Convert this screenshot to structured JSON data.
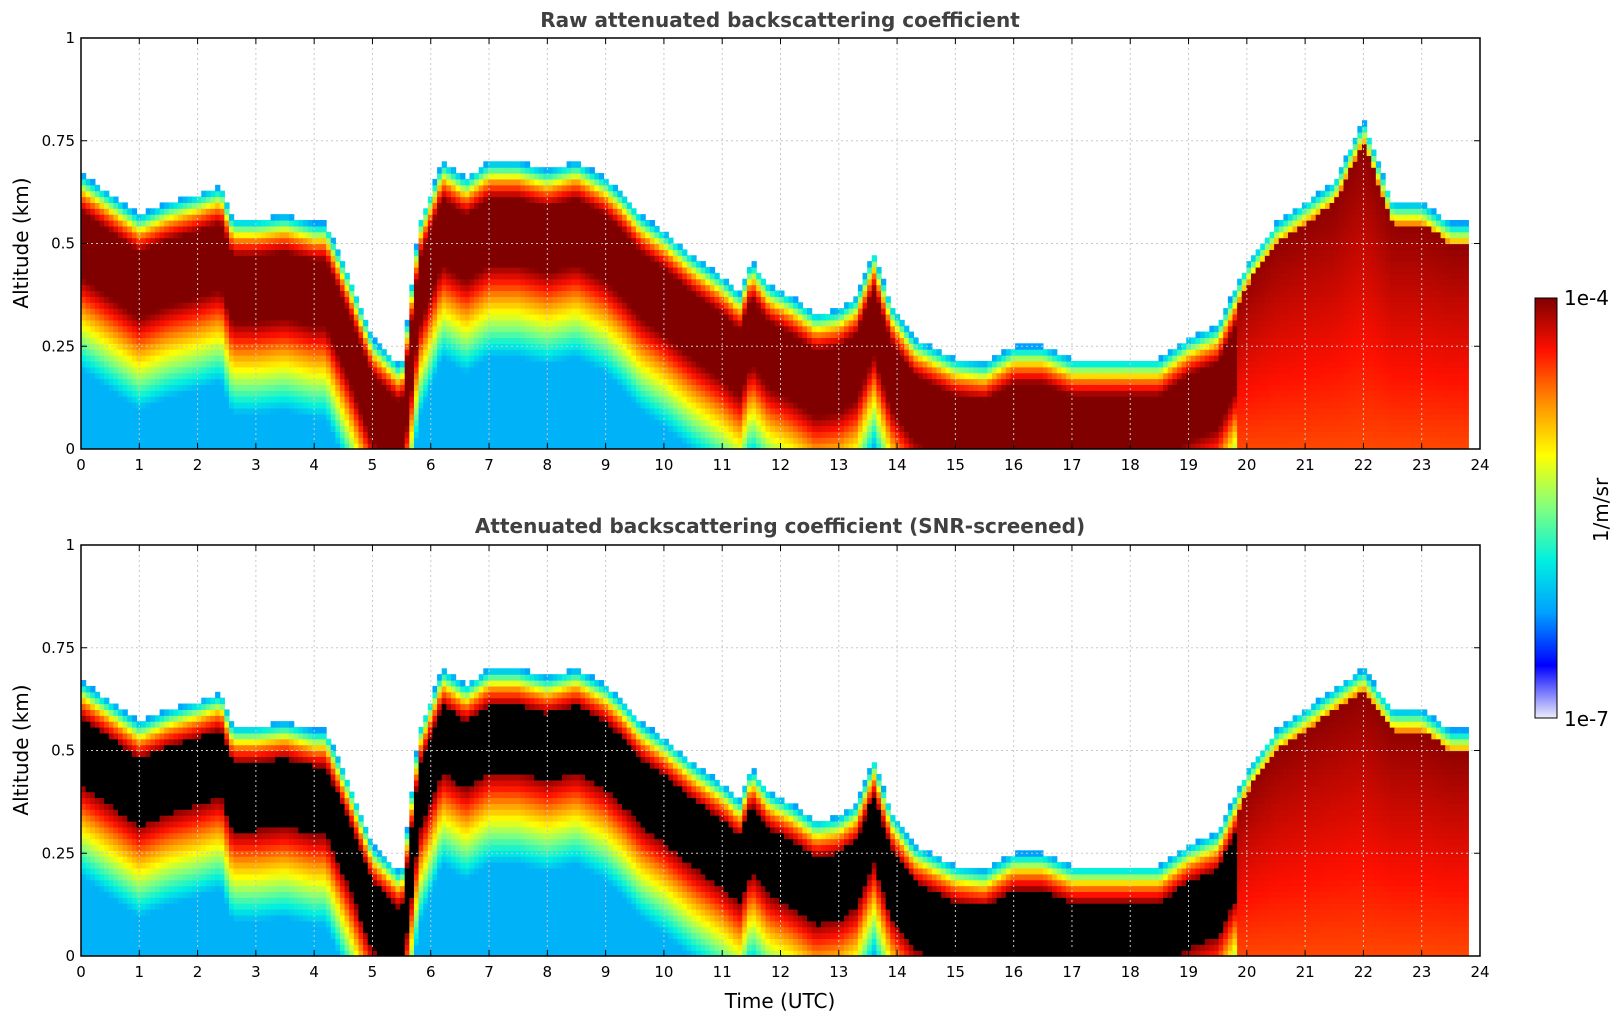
{
  "colors": {
    "colormap": [
      "#ecedfa",
      "#0000ff",
      "#00a0ff",
      "#00f0e0",
      "#80ff80",
      "#ffff00",
      "#ff9000",
      "#ff1000",
      "#800000"
    ],
    "screened": "#000000",
    "grid": "#c8c8c8"
  },
  "colorbar": {
    "min_label": "1e-7",
    "max_label": "1e-4",
    "label": "1/m/sr"
  },
  "chart_data": [
    {
      "type": "heatmap",
      "title": "Raw attenuated backscattering coefficient",
      "xlabel": "",
      "ylabel": "Altitude (km)",
      "xlim": [
        0,
        24
      ],
      "ylim": [
        0,
        1
      ],
      "xticks": [
        "0",
        "1",
        "2",
        "3",
        "4",
        "5",
        "6",
        "7",
        "8",
        "9",
        "10",
        "11",
        "12",
        "13",
        "14",
        "15",
        "16",
        "17",
        "18",
        "19",
        "20",
        "21",
        "22",
        "23",
        "24"
      ],
      "yticks": [
        "0",
        "0.25",
        "0.5",
        "0.75",
        "1"
      ],
      "grid": true,
      "screened": false,
      "layer_top_km": {
        "time_utc": [
          0,
          0.5,
          1,
          1.5,
          2,
          2.4,
          2.6,
          3,
          3.5,
          4,
          4.2,
          4.6,
          5,
          5.5,
          5.8,
          6.2,
          6.6,
          7,
          7.5,
          8,
          8.5,
          9,
          9.3,
          9.6,
          10,
          10.5,
          11,
          11.3,
          11.5,
          11.8,
          12.2,
          12.6,
          13,
          13.3,
          13.6,
          13.9,
          14.3,
          15,
          15.5,
          16,
          16.5,
          17,
          17.5,
          18,
          18.5,
          19,
          19.5,
          20,
          20.5,
          21,
          21.5,
          22,
          22.5,
          23,
          23.5,
          23.8
        ],
        "altitude_km": [
          0.67,
          0.62,
          0.57,
          0.6,
          0.62,
          0.64,
          0.56,
          0.56,
          0.57,
          0.55,
          0.55,
          0.42,
          0.27,
          0.2,
          0.55,
          0.7,
          0.66,
          0.7,
          0.7,
          0.68,
          0.7,
          0.66,
          0.62,
          0.57,
          0.53,
          0.47,
          0.42,
          0.38,
          0.46,
          0.4,
          0.37,
          0.33,
          0.34,
          0.37,
          0.48,
          0.35,
          0.27,
          0.22,
          0.21,
          0.25,
          0.25,
          0.22,
          0.22,
          0.22,
          0.22,
          0.27,
          0.3,
          0.45,
          0.55,
          0.6,
          0.65,
          0.8,
          0.6,
          0.6,
          0.55,
          0.55
        ]
      }
    },
    {
      "type": "heatmap",
      "title": "Attenuated backscattering coefficient (SNR-screened)",
      "xlabel": "Time (UTC)",
      "ylabel": "Altitude (km)",
      "xlim": [
        0,
        24
      ],
      "ylim": [
        0,
        1
      ],
      "xticks": [
        "0",
        "1",
        "2",
        "3",
        "4",
        "5",
        "6",
        "7",
        "8",
        "9",
        "10",
        "11",
        "12",
        "13",
        "14",
        "15",
        "16",
        "17",
        "18",
        "19",
        "20",
        "21",
        "22",
        "23",
        "24"
      ],
      "yticks": [
        "0",
        "0.25",
        "0.5",
        "0.75",
        "1"
      ],
      "grid": true,
      "screened": true,
      "layer_top_km": {
        "time_utc": [
          0,
          0.5,
          1,
          1.5,
          2,
          2.4,
          2.6,
          3,
          3.5,
          4,
          4.2,
          4.6,
          5,
          5.5,
          5.8,
          6.2,
          6.6,
          7,
          7.5,
          8,
          8.5,
          9,
          9.3,
          9.6,
          10,
          10.5,
          11,
          11.3,
          11.5,
          11.8,
          12.2,
          12.6,
          13,
          13.3,
          13.6,
          13.9,
          14.3,
          15,
          15.5,
          16,
          16.5,
          17,
          17.5,
          18,
          18.5,
          19,
          19.5,
          20,
          20.5,
          21,
          21.5,
          22,
          22.5,
          23,
          23.5,
          23.8
        ],
        "altitude_km": [
          0.67,
          0.62,
          0.57,
          0.6,
          0.62,
          0.64,
          0.56,
          0.56,
          0.57,
          0.55,
          0.55,
          0.42,
          0.27,
          0.2,
          0.55,
          0.7,
          0.66,
          0.7,
          0.7,
          0.68,
          0.7,
          0.66,
          0.62,
          0.57,
          0.53,
          0.47,
          0.42,
          0.38,
          0.46,
          0.4,
          0.37,
          0.33,
          0.34,
          0.37,
          0.48,
          0.35,
          0.27,
          0.22,
          0.21,
          0.25,
          0.25,
          0.22,
          0.22,
          0.22,
          0.22,
          0.27,
          0.3,
          0.45,
          0.55,
          0.6,
          0.65,
          0.7,
          0.6,
          0.6,
          0.55,
          0.55
        ]
      }
    }
  ]
}
